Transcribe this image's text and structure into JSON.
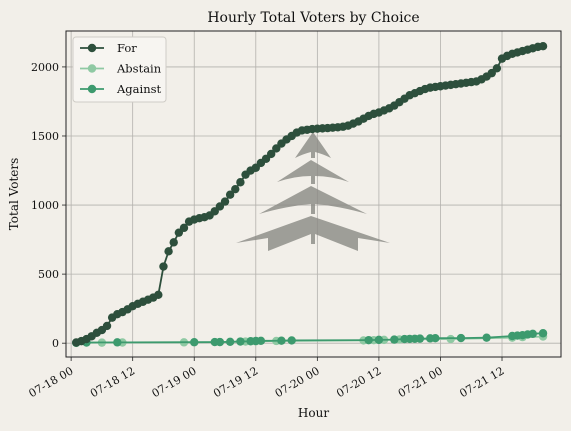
{
  "chart_data": {
    "type": "line",
    "title": "Hourly Total Voters by Choice",
    "xlabel": "Hour",
    "ylabel": "Total Voters",
    "ylim": [
      -100,
      2260
    ],
    "xlim": [
      "2024-07-17T23:00",
      "2024-07-21T23:30"
    ],
    "grid": true,
    "legend_position": "top-left",
    "x_ticks": [
      {
        "label": "07-18 00",
        "x": "2024-07-18T00:00"
      },
      {
        "label": "07-18 12",
        "x": "2024-07-18T12:00"
      },
      {
        "label": "07-19 00",
        "x": "2024-07-19T00:00"
      },
      {
        "label": "07-19 12",
        "x": "2024-07-19T12:00"
      },
      {
        "label": "07-20 00",
        "x": "2024-07-20T00:00"
      },
      {
        "label": "07-20 12",
        "x": "2024-07-20T12:00"
      },
      {
        "label": "07-21 00",
        "x": "2024-07-21T00:00"
      },
      {
        "label": "07-21 12",
        "x": "2024-07-21T12:00"
      }
    ],
    "y_ticks": [
      0,
      500,
      1000,
      1500,
      2000
    ],
    "series": [
      {
        "name": "For",
        "color": "#2d4f3c",
        "points": [
          [
            "2024-07-18T01:00",
            5
          ],
          [
            "2024-07-18T02:00",
            15
          ],
          [
            "2024-07-18T03:00",
            30
          ],
          [
            "2024-07-18T04:00",
            50
          ],
          [
            "2024-07-18T05:00",
            75
          ],
          [
            "2024-07-18T06:00",
            95
          ],
          [
            "2024-07-18T07:00",
            125
          ],
          [
            "2024-07-18T08:00",
            185
          ],
          [
            "2024-07-18T09:00",
            210
          ],
          [
            "2024-07-18T10:00",
            225
          ],
          [
            "2024-07-18T11:00",
            245
          ],
          [
            "2024-07-18T12:00",
            268
          ],
          [
            "2024-07-18T13:00",
            285
          ],
          [
            "2024-07-18T14:00",
            300
          ],
          [
            "2024-07-18T15:00",
            315
          ],
          [
            "2024-07-18T16:00",
            330
          ],
          [
            "2024-07-18T17:00",
            350
          ],
          [
            "2024-07-18T18:00",
            555
          ],
          [
            "2024-07-18T19:00",
            665
          ],
          [
            "2024-07-18T20:00",
            730
          ],
          [
            "2024-07-18T21:00",
            800
          ],
          [
            "2024-07-18T22:00",
            835
          ],
          [
            "2024-07-18T23:00",
            880
          ],
          [
            "2024-07-19T00:00",
            895
          ],
          [
            "2024-07-19T01:00",
            905
          ],
          [
            "2024-07-19T02:00",
            912
          ],
          [
            "2024-07-19T03:00",
            925
          ],
          [
            "2024-07-19T04:00",
            955
          ],
          [
            "2024-07-19T05:00",
            990
          ],
          [
            "2024-07-19T06:00",
            1025
          ],
          [
            "2024-07-19T07:00",
            1075
          ],
          [
            "2024-07-19T08:00",
            1115
          ],
          [
            "2024-07-19T09:00",
            1165
          ],
          [
            "2024-07-19T10:00",
            1220
          ],
          [
            "2024-07-19T11:00",
            1250
          ],
          [
            "2024-07-19T12:00",
            1270
          ],
          [
            "2024-07-19T13:00",
            1305
          ],
          [
            "2024-07-19T14:00",
            1335
          ],
          [
            "2024-07-19T15:00",
            1370
          ],
          [
            "2024-07-19T16:00",
            1410
          ],
          [
            "2024-07-19T17:00",
            1445
          ],
          [
            "2024-07-19T18:00",
            1475
          ],
          [
            "2024-07-19T19:00",
            1500
          ],
          [
            "2024-07-19T20:00",
            1525
          ],
          [
            "2024-07-19T21:00",
            1540
          ],
          [
            "2024-07-19T22:00",
            1545
          ],
          [
            "2024-07-19T23:00",
            1550
          ],
          [
            "2024-07-20T00:00",
            1553
          ],
          [
            "2024-07-20T01:00",
            1555
          ],
          [
            "2024-07-20T02:00",
            1557
          ],
          [
            "2024-07-20T03:00",
            1560
          ],
          [
            "2024-07-20T04:00",
            1563
          ],
          [
            "2024-07-20T05:00",
            1567
          ],
          [
            "2024-07-20T06:00",
            1575
          ],
          [
            "2024-07-20T07:00",
            1590
          ],
          [
            "2024-07-20T08:00",
            1605
          ],
          [
            "2024-07-20T09:00",
            1625
          ],
          [
            "2024-07-20T10:00",
            1645
          ],
          [
            "2024-07-20T11:00",
            1660
          ],
          [
            "2024-07-20T12:00",
            1670
          ],
          [
            "2024-07-20T13:00",
            1685
          ],
          [
            "2024-07-20T14:00",
            1700
          ],
          [
            "2024-07-20T15:00",
            1720
          ],
          [
            "2024-07-20T16:00",
            1745
          ],
          [
            "2024-07-20T17:00",
            1770
          ],
          [
            "2024-07-20T18:00",
            1795
          ],
          [
            "2024-07-20T19:00",
            1810
          ],
          [
            "2024-07-20T20:00",
            1825
          ],
          [
            "2024-07-20T21:00",
            1840
          ],
          [
            "2024-07-20T22:00",
            1850
          ],
          [
            "2024-07-20T23:00",
            1855
          ],
          [
            "2024-07-21T00:00",
            1860
          ],
          [
            "2024-07-21T01:00",
            1865
          ],
          [
            "2024-07-21T02:00",
            1870
          ],
          [
            "2024-07-21T03:00",
            1875
          ],
          [
            "2024-07-21T04:00",
            1880
          ],
          [
            "2024-07-21T05:00",
            1885
          ],
          [
            "2024-07-21T06:00",
            1890
          ],
          [
            "2024-07-21T07:00",
            1895
          ],
          [
            "2024-07-21T08:00",
            1910
          ],
          [
            "2024-07-21T09:00",
            1930
          ],
          [
            "2024-07-21T10:00",
            1955
          ],
          [
            "2024-07-21T11:00",
            1990
          ],
          [
            "2024-07-21T12:00",
            2060
          ],
          [
            "2024-07-21T13:00",
            2080
          ],
          [
            "2024-07-21T14:00",
            2095
          ],
          [
            "2024-07-21T15:00",
            2105
          ],
          [
            "2024-07-21T16:00",
            2115
          ],
          [
            "2024-07-21T17:00",
            2125
          ],
          [
            "2024-07-21T18:00",
            2135
          ],
          [
            "2024-07-21T19:00",
            2145
          ],
          [
            "2024-07-21T20:00",
            2150
          ]
        ]
      },
      {
        "name": "Abstain",
        "color": "#8fc9a3",
        "points": [
          [
            "2024-07-18T01:00",
            2
          ],
          [
            "2024-07-18T06:00",
            4
          ],
          [
            "2024-07-18T10:00",
            5
          ],
          [
            "2024-07-18T22:00",
            6
          ],
          [
            "2024-07-19T05:00",
            8
          ],
          [
            "2024-07-19T10:00",
            12
          ],
          [
            "2024-07-19T12:00",
            14
          ],
          [
            "2024-07-19T16:00",
            16
          ],
          [
            "2024-07-20T09:00",
            20
          ],
          [
            "2024-07-20T11:00",
            22
          ],
          [
            "2024-07-20T13:00",
            24
          ],
          [
            "2024-07-20T16:00",
            27
          ],
          [
            "2024-07-21T02:00",
            30
          ],
          [
            "2024-07-21T14:00",
            40
          ],
          [
            "2024-07-21T16:00",
            44
          ],
          [
            "2024-07-21T20:00",
            48
          ]
        ]
      },
      {
        "name": "Against",
        "color": "#3d9a6e",
        "points": [
          [
            "2024-07-18T01:00",
            3
          ],
          [
            "2024-07-18T03:00",
            5
          ],
          [
            "2024-07-18T09:00",
            6
          ],
          [
            "2024-07-19T00:00",
            7
          ],
          [
            "2024-07-19T04:00",
            8
          ],
          [
            "2024-07-19T05:00",
            8
          ],
          [
            "2024-07-19T07:00",
            10
          ],
          [
            "2024-07-19T09:00",
            12
          ],
          [
            "2024-07-19T11:00",
            14
          ],
          [
            "2024-07-19T12:00",
            16
          ],
          [
            "2024-07-19T13:00",
            17
          ],
          [
            "2024-07-19T17:00",
            18
          ],
          [
            "2024-07-19T19:00",
            20
          ],
          [
            "2024-07-20T10:00",
            22
          ],
          [
            "2024-07-20T12:00",
            24
          ],
          [
            "2024-07-20T15:00",
            26
          ],
          [
            "2024-07-20T17:00",
            30
          ],
          [
            "2024-07-20T18:00",
            31
          ],
          [
            "2024-07-20T19:00",
            32
          ],
          [
            "2024-07-20T20:00",
            33
          ],
          [
            "2024-07-20T22:00",
            35
          ],
          [
            "2024-07-20T23:00",
            36
          ],
          [
            "2024-07-21T04:00",
            37
          ],
          [
            "2024-07-21T09:00",
            40
          ],
          [
            "2024-07-21T14:00",
            52
          ],
          [
            "2024-07-21T15:00",
            55
          ],
          [
            "2024-07-21T16:00",
            58
          ],
          [
            "2024-07-21T17:00",
            63
          ],
          [
            "2024-07-21T18:00",
            68
          ],
          [
            "2024-07-21T20:00",
            72
          ]
        ]
      }
    ]
  }
}
